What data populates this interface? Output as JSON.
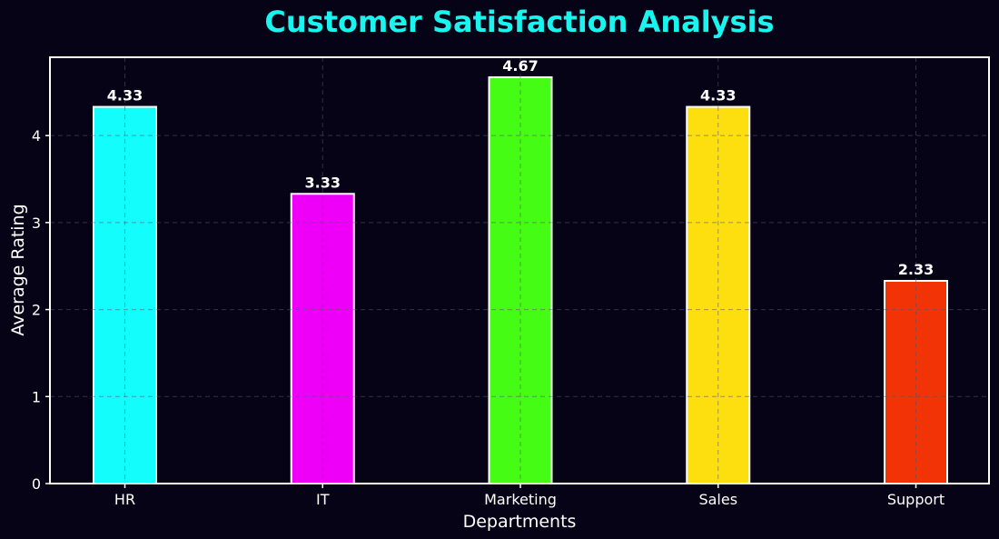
{
  "chart_data": {
    "type": "bar",
    "title": "Customer Satisfaction Analysis",
    "xlabel": "Departments",
    "ylabel": "Average Rating",
    "categories": [
      "HR",
      "IT",
      "Marketing",
      "Sales",
      "Support"
    ],
    "values": [
      4.33,
      3.33,
      4.67,
      4.33,
      2.33
    ],
    "value_labels": [
      "4.33",
      "3.33",
      "4.67",
      "4.33",
      "2.33"
    ],
    "colors": [
      "#14fdfd",
      "#ee00f8",
      "#45fc14",
      "#fddf10",
      "#f23306"
    ],
    "ylim": [
      0,
      4.9
    ],
    "yticks": [
      0,
      1,
      2,
      3,
      4
    ],
    "ytick_labels": [
      "0",
      "1",
      "2",
      "3",
      "4"
    ],
    "grid": true,
    "background_color": "#070317",
    "title_color": "#19f5ee"
  }
}
